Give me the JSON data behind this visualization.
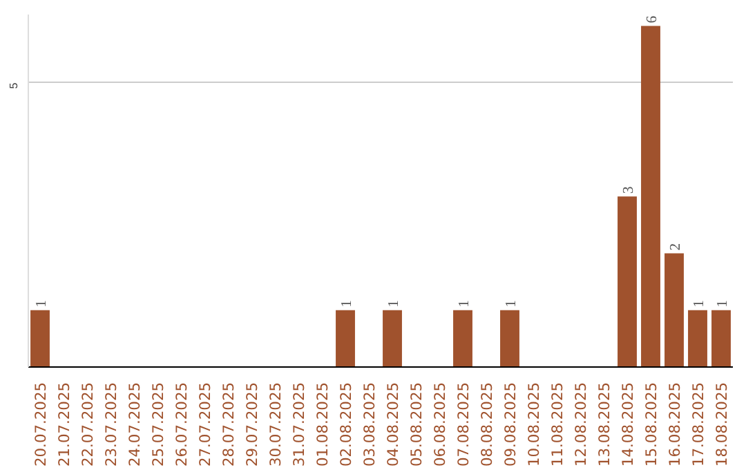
{
  "chart_data": {
    "type": "bar",
    "categories": [
      "20.07.2025",
      "21.07.2025",
      "22.07.2025",
      "23.07.2025",
      "24.07.2025",
      "25.07.2025",
      "26.07.2025",
      "27.07.2025",
      "28.07.2025",
      "29.07.2025",
      "30.07.2025",
      "31.07.2025",
      "01.08.2025",
      "02.08.2025",
      "03.08.2025",
      "04.08.2025",
      "05.08.2025",
      "06.08.2025",
      "07.08.2025",
      "08.08.2025",
      "09.08.2025",
      "10.08.2025",
      "11.08.2025",
      "12.08.2025",
      "13.08.2025",
      "14.08.2025",
      "15.08.2025",
      "16.08.2025",
      "17.08.2025",
      "18.08.2025"
    ],
    "values": [
      1,
      0,
      0,
      0,
      0,
      0,
      0,
      0,
      0,
      0,
      0,
      0,
      0,
      1,
      0,
      1,
      0,
      0,
      1,
      0,
      1,
      0,
      0,
      0,
      0,
      3,
      6,
      2,
      1,
      1
    ],
    "value_labels": [
      "1",
      null,
      null,
      null,
      null,
      null,
      null,
      null,
      null,
      null,
      null,
      null,
      null,
      "1",
      null,
      "1",
      null,
      null,
      "1",
      null,
      "1",
      null,
      null,
      null,
      null,
      "3",
      "6",
      "2",
      "1",
      "1"
    ],
    "color": "#a0522d",
    "ylim": [
      0,
      6.2
    ],
    "yticks": [
      5
    ],
    "grid": "y"
  }
}
